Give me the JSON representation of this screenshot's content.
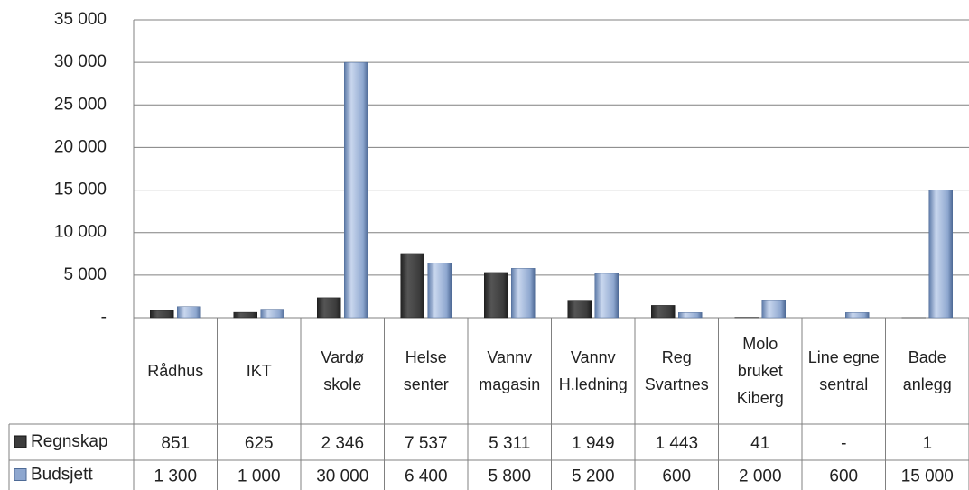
{
  "chart_data": {
    "type": "bar",
    "categories": [
      "Rådhus",
      "IKT",
      "Vardø skole",
      "Helse senter",
      "Vannv magasin",
      "Vannv H.ledning",
      "Reg Svartnes",
      "Molo bruket Kiberg",
      "Line egne sentral",
      "Bade anlegg"
    ],
    "series": [
      {
        "name": "Regnskap",
        "color": "#3c3c3c",
        "values": [
          851,
          625,
          2346,
          7537,
          5311,
          1949,
          1443,
          41,
          0,
          1
        ],
        "value_labels": [
          "851",
          "625",
          "2 346",
          "7 537",
          "5 311",
          "1 949",
          "1 443",
          "41",
          "-",
          "1"
        ]
      },
      {
        "name": "Budsjett",
        "color": "#8ea7cf",
        "values": [
          1300,
          1000,
          30000,
          6400,
          5800,
          5200,
          600,
          2000,
          600,
          15000
        ],
        "value_labels": [
          "1 300",
          "1 000",
          "30 000",
          "6 400",
          "5 800",
          "5 200",
          "600",
          "2 000",
          "600",
          "15 000"
        ]
      }
    ],
    "ylim": [
      0,
      35000
    ],
    "yticks": [
      {
        "value": 0,
        "label": "-"
      },
      {
        "value": 5000,
        "label": "5 000"
      },
      {
        "value": 10000,
        "label": "10 000"
      },
      {
        "value": 15000,
        "label": "15 000"
      },
      {
        "value": 20000,
        "label": "20 000"
      },
      {
        "value": 25000,
        "label": "25 000"
      },
      {
        "value": 30000,
        "label": "30 000"
      },
      {
        "value": 35000,
        "label": "35 000"
      }
    ],
    "grid": true
  }
}
